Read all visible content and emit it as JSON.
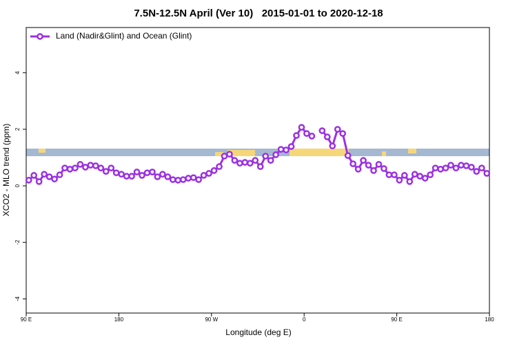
{
  "chart_data": {
    "type": "line",
    "title": "7.5N-12.5N April (Ver 10)   2015-01-01 to 2020-12-18",
    "x_label": "Longitude (deg E)",
    "y_label": "XCO2 - MLO trend (ppm)",
    "xlim": [
      90,
      540
    ],
    "xticks": [
      {
        "value": 90,
        "label": "90 E"
      },
      {
        "value": 180,
        "label": "180"
      },
      {
        "value": 270,
        "label": "90 W"
      },
      {
        "value": 360,
        "label": "0"
      },
      {
        "value": 450,
        "label": "90 E"
      },
      {
        "value": 540,
        "label": "180"
      }
    ],
    "ylim": [
      -4.5,
      5.6
    ],
    "yticks": [
      -4,
      -2,
      0,
      2,
      4
    ],
    "grid": false,
    "legend": "top-left",
    "series": [
      {
        "name": "Land (Nadir&Glint) and Ocean (Glint)",
        "color": "#9b30e0",
        "x": [
          92.5,
          97.5,
          102.5,
          107.5,
          112.5,
          117.5,
          122.5,
          127.5,
          132.5,
          137.5,
          142.5,
          147.5,
          152.5,
          157.5,
          162.5,
          167.5,
          172.5,
          177.5,
          182.5,
          187.5,
          192.5,
          197.5,
          202.5,
          207.5,
          212.5,
          217.5,
          222.5,
          227.5,
          232.5,
          237.5,
          242.5,
          247.5,
          252.5,
          257.5,
          262.5,
          267.5,
          272.5,
          277.5,
          282.5,
          287.5,
          292.5,
          297.5,
          302.5,
          307.5,
          312.5,
          317.5,
          322.5,
          327.5,
          332.5,
          337.5,
          342.5,
          347.5,
          352.5,
          357.5,
          362.5,
          367.5,
          372.5,
          377.5,
          382.5,
          387.5,
          392.5,
          397.5,
          402.5,
          407.5,
          412.5,
          417.5,
          422.5,
          427.5,
          432.5,
          437.5,
          442.5,
          447.5,
          452.5,
          457.5,
          462.5,
          467.5,
          472.5,
          477.5,
          482.5,
          487.5,
          492.5,
          497.5,
          502.5,
          507.5,
          512.5,
          517.5,
          522.5,
          527.5,
          532.5,
          537.5
        ],
        "values": [
          0.2,
          0.37,
          0.15,
          0.41,
          0.32,
          0.24,
          0.39,
          0.63,
          0.59,
          0.63,
          0.76,
          0.66,
          0.73,
          0.71,
          0.63,
          0.51,
          0.63,
          0.46,
          0.41,
          0.34,
          0.34,
          0.49,
          0.37,
          0.46,
          0.49,
          0.32,
          0.41,
          0.32,
          0.22,
          0.2,
          0.22,
          0.27,
          0.29,
          0.22,
          0.37,
          0.44,
          0.54,
          0.68,
          1.05,
          1.12,
          0.9,
          0.8,
          0.83,
          0.8,
          0.9,
          0.68,
          1.05,
          0.9,
          1.1,
          1.29,
          1.27,
          1.39,
          1.78,
          2.07,
          1.85,
          1.76,
          null,
          1.95,
          1.73,
          1.41,
          2.0,
          1.85,
          1.07,
          0.78,
          0.59,
          0.9,
          0.73,
          0.54,
          0.76,
          0.61,
          0.39,
          0.39,
          0.2,
          0.37,
          0.15,
          0.41,
          0.34,
          0.27,
          0.39,
          0.63,
          0.59,
          0.63,
          0.73,
          0.63,
          0.73,
          0.71,
          0.66,
          0.51,
          0.63,
          0.44
        ]
      }
    ]
  }
}
